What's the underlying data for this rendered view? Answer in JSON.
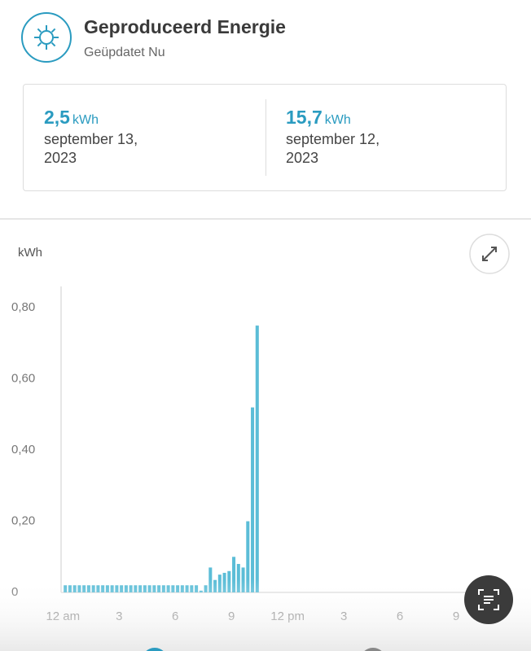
{
  "header": {
    "title": "Geproduceerd Energie",
    "subtitle": "Geüpdatet Nu"
  },
  "stats": [
    {
      "value": "2,5",
      "unit": "kWh",
      "date": "september 13, 2023"
    },
    {
      "value": "15,7",
      "unit": "kWh",
      "date": "september 12, 2023"
    }
  ],
  "chart_data": {
    "type": "bar",
    "y_label": "kWh",
    "color": "#5bbdd7",
    "x": [
      0,
      0.25,
      0.5,
      0.75,
      1,
      1.25,
      1.5,
      1.75,
      2,
      2.25,
      2.5,
      2.75,
      3,
      3.25,
      3.5,
      3.75,
      4,
      4.25,
      4.5,
      4.75,
      5,
      5.25,
      5.5,
      5.75,
      6,
      6.25,
      6.5,
      6.75,
      7,
      7.25,
      7.5,
      7.75,
      8,
      8.25,
      8.5,
      8.75,
      9,
      9.25,
      9.5,
      9.75,
      10,
      10.25
    ],
    "values": [
      0.02,
      0.02,
      0.02,
      0.02,
      0.02,
      0.02,
      0.02,
      0.02,
      0.02,
      0.02,
      0.02,
      0.02,
      0.02,
      0.02,
      0.02,
      0.02,
      0.02,
      0.02,
      0.02,
      0.02,
      0.02,
      0.02,
      0.02,
      0.02,
      0.02,
      0.02,
      0.02,
      0.02,
      0.02,
      0.005,
      0.02,
      0.07,
      0.035,
      0.05,
      0.055,
      0.06,
      0.1,
      0.08,
      0.07,
      0.2,
      0.52,
      0.75
    ],
    "xlim": [
      -0.1,
      24
    ],
    "xticks": [
      {
        "value": 0,
        "label": "12 am"
      },
      3,
      6,
      9,
      {
        "value": 12,
        "label": "12 pm"
      },
      {
        "value": 15,
        "label": "3"
      },
      {
        "value": 18,
        "label": "6"
      },
      {
        "value": 21,
        "label": "9"
      }
    ],
    "ylim": [
      0,
      0.86
    ],
    "yticks": [
      0,
      {
        "value": 0.2,
        "label": "0,20"
      },
      {
        "value": 0.4,
        "label": "0,40"
      },
      {
        "value": 0.6,
        "label": "0,60"
      },
      {
        "value": 0.8,
        "label": "0,80"
      }
    ]
  }
}
